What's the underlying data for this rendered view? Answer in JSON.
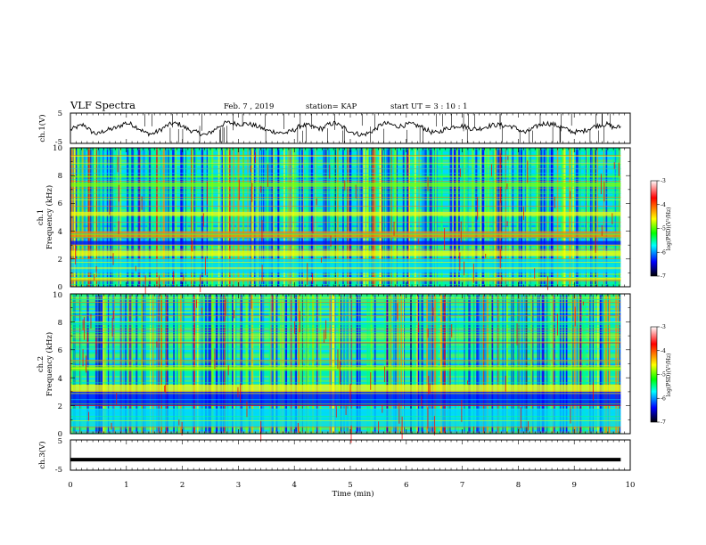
{
  "header": {
    "title": "VLF Spectra",
    "date": "Feb. 7 , 2019",
    "station": "station= KAP",
    "start": "start  UT =   3 : 10 : 1"
  },
  "colorbar": {
    "label": "log(PSD)(V²/Hz)",
    "ticks": [
      "-3",
      "-4",
      "-5",
      "-6",
      "-7"
    ],
    "colors": [
      "#ffffff",
      "#ff0000",
      "#ffff00",
      "#00ff00",
      "#00ffff",
      "#0000ff",
      "#000000"
    ]
  },
  "chart_data": [
    {
      "type": "line",
      "panel": "ch1-waveform",
      "ylabel": "ch.1(V)",
      "ylim": [
        -5,
        5
      ],
      "ytick_labels": [
        "5",
        "-5"
      ],
      "xlim": [
        0,
        10
      ],
      "x_end": 9.83,
      "series": [
        {
          "values": [
            -0.5,
            0.4,
            1.2,
            -1.0,
            -2.0,
            -0.8,
            -0.3,
            0.3,
            1.8,
            1.3,
            0.1,
            -1.5,
            -1.9,
            -0.9,
            0.6,
            1.6,
            1.4,
            0.0,
            -1.0,
            -1.6,
            -2.3,
            -0.8,
            0.8,
            1.9,
            1.6,
            1.4,
            1.5,
            1.0,
            0.2,
            -0.8,
            -1.1,
            -1.6,
            -1.4,
            -0.5,
            1.0,
            0.9,
            0.2,
            -0.2,
            1.3,
            1.7,
            0.4,
            -0.8,
            -1.7,
            -2.2,
            -1.5,
            -0.1,
            1.6,
            1.4,
            0.6,
            0.9,
            1.4,
            0.9,
            0.1,
            -1.2,
            -1.6,
            -0.4,
            0.3,
            0.9,
            0.6,
            -0.1,
            -0.3,
            0.4,
            1.0,
            1.1,
            0.8,
            0.6,
            -0.5,
            -1.5,
            -0.2,
            1.1,
            1.7,
            1.3,
            0.6,
            -0.4,
            -1.2,
            -1.2,
            -0.5,
            0.5,
            1.1,
            1.3,
            0.2,
            0.5
          ]
        }
      ]
    },
    {
      "type": "heatmap",
      "panel": "ch1-spectrogram",
      "ylabel": "ch.1",
      "ylabel2": "Frequency  (kHz)",
      "ylim": [
        0,
        10
      ],
      "ytick_labels": [
        "0",
        "2",
        "4",
        "6",
        "8",
        "10"
      ],
      "xlim": [
        0,
        10
      ],
      "x_end": 9.83,
      "bands": [
        {
          "f": [
            3.5,
            4.0
          ],
          "level": 0.9
        },
        {
          "f": [
            2.2,
            2.6
          ],
          "level": 0.75
        },
        {
          "f": [
            1.0,
            2.0
          ],
          "level": 0.4
        },
        {
          "f": [
            3.0,
            3.3
          ],
          "level": 0.1
        },
        {
          "f": [
            0.5,
            0.7
          ],
          "level": 0.7
        },
        {
          "f": [
            5.1,
            5.4
          ],
          "level": 0.7
        },
        {
          "f": [
            7.2,
            7.5
          ],
          "level": 0.65
        }
      ]
    },
    {
      "type": "heatmap",
      "panel": "ch2-spectrogram",
      "ylabel": "ch.2",
      "ylabel2": "Frequency  (kHz)",
      "ylim": [
        0,
        10
      ],
      "ytick_labels": [
        "0",
        "2",
        "4",
        "6",
        "8",
        "10"
      ],
      "xlim": [
        0,
        10
      ],
      "x_end": 9.83,
      "bands": [
        {
          "f": [
            2.0,
            3.0
          ],
          "level": 0.1
        },
        {
          "f": [
            3.0,
            3.5
          ],
          "level": 0.7
        },
        {
          "f": [
            0.5,
            1.8
          ],
          "level": 0.35
        },
        {
          "f": [
            4.5,
            4.8
          ],
          "level": 0.6
        }
      ]
    },
    {
      "type": "line",
      "panel": "ch3-waveform",
      "ylabel": "ch.3(V)",
      "ylim": [
        -5,
        5
      ],
      "ytick_labels": [
        "5",
        "-5"
      ],
      "xlim": [
        0,
        10
      ],
      "x_end": 9.83,
      "series": [
        {
          "values": [
            -1.5,
            -1.5
          ]
        }
      ]
    }
  ],
  "x_axis": {
    "label": "Time  (min)",
    "tick_labels": [
      "0",
      "1",
      "2",
      "3",
      "4",
      "5",
      "6",
      "7",
      "8",
      "9",
      "10"
    ]
  }
}
